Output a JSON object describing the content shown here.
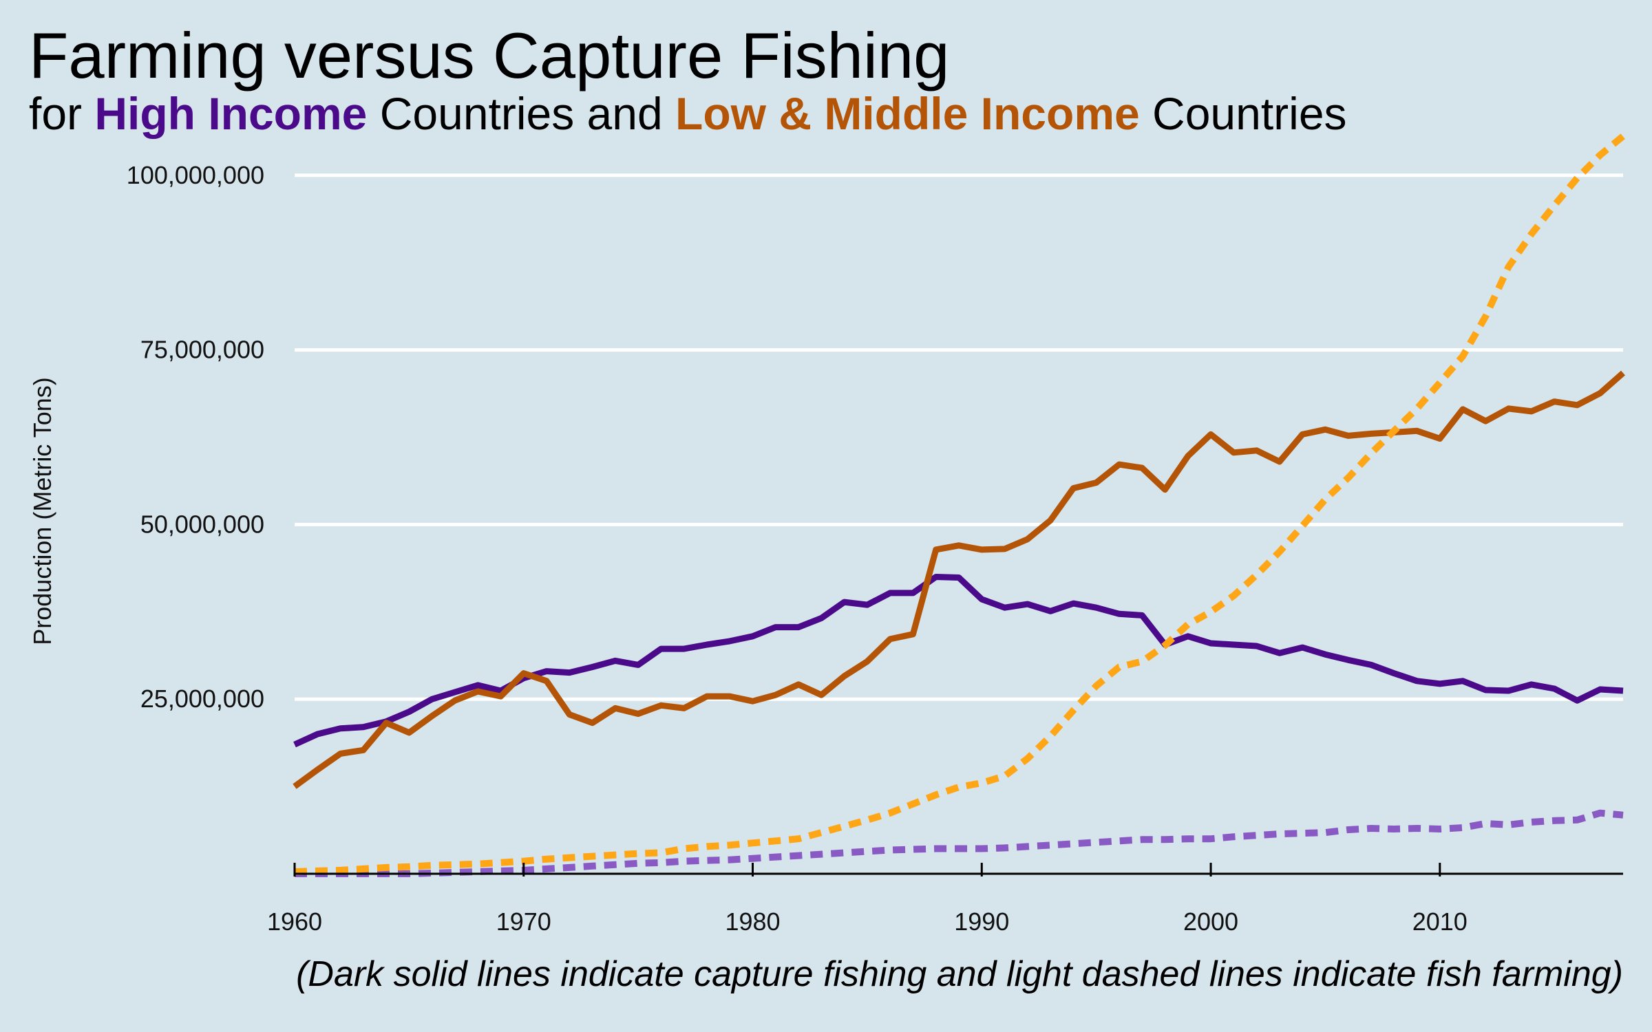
{
  "title": "Farming versus Capture Fishing",
  "subtitle": {
    "prefix": "for ",
    "group1": "High Income",
    "middle": " Countries and ",
    "group2": "Low & Middle Income",
    "suffix": " Countries"
  },
  "caption": "(Dark solid lines indicate capture fishing and light dashed lines indicate fish farming)",
  "colors": {
    "background": "#d6e4eb",
    "high_income_capture": "#4b0a8a",
    "high_income_farming": "#8a5ac4",
    "lmi_capture": "#b35406",
    "lmi_farming": "#ffa617",
    "grid": "#ffffff"
  },
  "chart_data": {
    "type": "line",
    "title": "Farming versus Capture Fishing",
    "xlabel": "",
    "ylabel": "Production (Metric Tons)",
    "xlim": [
      1960,
      2018
    ],
    "ylim": [
      0,
      105000000
    ],
    "grid": "horizontal",
    "yticks": [
      25000000,
      50000000,
      75000000,
      100000000
    ],
    "ytick_labels": [
      "25,000,000",
      "50,000,000",
      "75,000,000",
      "100,000,000"
    ],
    "xticks": [
      1960,
      1970,
      1980,
      1990,
      2000,
      2010
    ],
    "xtick_labels": [
      "1960",
      "1970",
      "1980",
      "1990",
      "2000",
      "2010"
    ],
    "x": [
      1960,
      1961,
      1962,
      1963,
      1964,
      1965,
      1966,
      1967,
      1968,
      1969,
      1970,
      1971,
      1972,
      1973,
      1974,
      1975,
      1976,
      1977,
      1978,
      1979,
      1980,
      1981,
      1982,
      1983,
      1984,
      1985,
      1986,
      1987,
      1988,
      1989,
      1990,
      1991,
      1992,
      1993,
      1994,
      1995,
      1996,
      1997,
      1998,
      1999,
      2000,
      2001,
      2002,
      2003,
      2004,
      2005,
      2006,
      2007,
      2008,
      2009,
      2010,
      2011,
      2012,
      2013,
      2014,
      2015,
      2016,
      2017,
      2018
    ],
    "series": [
      {
        "group": "High Income",
        "kind": "capture",
        "style": "solid",
        "color": "#4b0a8a",
        "values": [
          18500000,
          20000000,
          20800000,
          21000000,
          21800000,
          23200000,
          25000000,
          26000000,
          27000000,
          26200000,
          28000000,
          29000000,
          28800000,
          29600000,
          30500000,
          29900000,
          32200000,
          32200000,
          32800000,
          33300000,
          34000000,
          35300000,
          35300000,
          36600000,
          38900000,
          38500000,
          40200000,
          40200000,
          42500000,
          42400000,
          39300000,
          38100000,
          38600000,
          37600000,
          38700000,
          38100000,
          37200000,
          37000000,
          32800000,
          34000000,
          33000000,
          32800000,
          32600000,
          31600000,
          32400000,
          31400000,
          30600000,
          29900000,
          28700000,
          27600000,
          27200000,
          27600000,
          26300000,
          26200000,
          27100000,
          26500000,
          24800000,
          26400000,
          26200000
        ]
      },
      {
        "group": "High Income",
        "kind": "farming",
        "style": "dashed",
        "color": "#8a5ac4",
        "values": [
          0,
          0,
          0,
          0,
          0,
          0,
          100000,
          200000,
          300000,
          400000,
          500000,
          700000,
          900000,
          1100000,
          1300000,
          1500000,
          1600000,
          1800000,
          1900000,
          2000000,
          2200000,
          2400000,
          2600000,
          2800000,
          3000000,
          3200000,
          3400000,
          3500000,
          3600000,
          3600000,
          3600000,
          3700000,
          3900000,
          4100000,
          4300000,
          4500000,
          4700000,
          4900000,
          4900000,
          5000000,
          5000000,
          5300000,
          5500000,
          5700000,
          5800000,
          5900000,
          6300000,
          6500000,
          6400000,
          6500000,
          6400000,
          6600000,
          7200000,
          7000000,
          7400000,
          7600000,
          7700000,
          8700000,
          8400000
        ]
      },
      {
        "group": "Low & Middle Income",
        "kind": "capture",
        "style": "solid",
        "color": "#b35406",
        "values": [
          12500000,
          14900000,
          17200000,
          17700000,
          21600000,
          20200000,
          22600000,
          24800000,
          26100000,
          25400000,
          28700000,
          27600000,
          22800000,
          21600000,
          23700000,
          22900000,
          24100000,
          23700000,
          25400000,
          25400000,
          24700000,
          25600000,
          27100000,
          25600000,
          28300000,
          30400000,
          33600000,
          34300000,
          46400000,
          47000000,
          46400000,
          46500000,
          47900000,
          50600000,
          55200000,
          56000000,
          58600000,
          58100000,
          55000000,
          59800000,
          62900000,
          60300000,
          60600000,
          59000000,
          62900000,
          63600000,
          62700000,
          63000000,
          63200000,
          63400000,
          62300000,
          66500000,
          64800000,
          66600000,
          66200000,
          67600000,
          67100000,
          68800000,
          71700000
        ]
      },
      {
        "group": "Low & Middle Income",
        "kind": "farming",
        "style": "dashed",
        "color": "#ffa617",
        "values": [
          300000,
          400000,
          500000,
          700000,
          900000,
          1000000,
          1200000,
          1300000,
          1400000,
          1600000,
          1800000,
          2100000,
          2300000,
          2500000,
          2700000,
          2900000,
          3000000,
          3600000,
          3900000,
          4100000,
          4400000,
          4700000,
          5000000,
          5900000,
          6800000,
          7700000,
          8700000,
          10000000,
          11300000,
          12400000,
          13000000,
          14000000,
          16500000,
          19700000,
          23400000,
          26900000,
          29600000,
          30400000,
          32700000,
          35700000,
          37500000,
          39800000,
          42800000,
          46100000,
          49800000,
          53600000,
          56700000,
          60200000,
          63400000,
          66600000,
          70300000,
          74100000,
          79800000,
          86900000,
          91600000,
          95700000,
          99600000,
          102900000,
          105600000
        ]
      }
    ]
  }
}
